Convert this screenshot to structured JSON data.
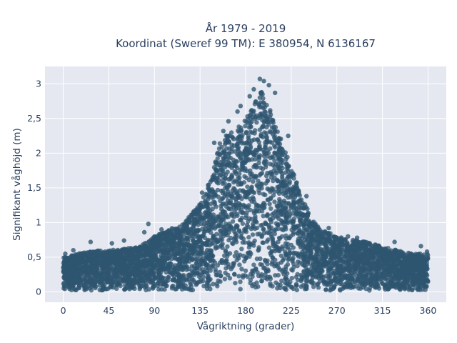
{
  "chart_data": {
    "type": "scatter",
    "title": [
      "År 1979 - 2019",
      "Koordinat (Sweref 99 TM): E 380954, N 6136167"
    ],
    "xlabel": "Vågriktning (grader)",
    "ylabel": "Signifikant våghöjd (m)",
    "xlim": [
      -18,
      378
    ],
    "ylim": [
      -0.15,
      3.25
    ],
    "xticks": [
      0,
      45,
      90,
      135,
      180,
      225,
      270,
      315,
      360
    ],
    "xtick_labels": [
      "0",
      "45",
      "90",
      "135",
      "180",
      "225",
      "270",
      "315",
      "360"
    ],
    "yticks": [
      0,
      0.5,
      1,
      1.5,
      2,
      2.5,
      3
    ],
    "ytick_labels": [
      "0",
      "0,5",
      "1",
      "1,5",
      "2",
      "2,5",
      "3"
    ],
    "grid": true,
    "marker_color": "#2f5670",
    "plot_bgcolor": "#e5e8f0",
    "upper_envelope": {
      "x": [
        0,
        15,
        30,
        45,
        60,
        75,
        90,
        105,
        120,
        135,
        145,
        155,
        165,
        175,
        185,
        190,
        195,
        200,
        205,
        210,
        215,
        225,
        235,
        245,
        255,
        270,
        285,
        300,
        315,
        330,
        345,
        360
      ],
      "y": [
        0.5,
        0.55,
        0.6,
        0.6,
        0.62,
        0.65,
        0.8,
        0.9,
        1.0,
        1.3,
        1.6,
        2.2,
        2.3,
        2.4,
        2.6,
        2.75,
        2.9,
        2.8,
        2.6,
        2.4,
        2.2,
        1.8,
        1.4,
        1.05,
        0.9,
        0.8,
        0.75,
        0.72,
        0.65,
        0.6,
        0.55,
        0.55
      ]
    },
    "outliers": [
      {
        "x": 194,
        "y": 3.07
      },
      {
        "x": 198,
        "y": 3.04
      },
      {
        "x": 203,
        "y": 2.98
      },
      {
        "x": 188,
        "y": 2.92
      },
      {
        "x": 209,
        "y": 2.87
      },
      {
        "x": 184,
        "y": 2.82
      },
      {
        "x": 175,
        "y": 2.68
      },
      {
        "x": 172,
        "y": 2.6
      },
      {
        "x": 163,
        "y": 2.46
      },
      {
        "x": 158,
        "y": 2.32
      },
      {
        "x": 222,
        "y": 2.25
      },
      {
        "x": 149,
        "y": 2.15
      },
      {
        "x": 137,
        "y": 1.43
      },
      {
        "x": 240,
        "y": 1.38
      },
      {
        "x": 84,
        "y": 0.98
      },
      {
        "x": 120,
        "y": 0.95
      },
      {
        "x": 80,
        "y": 0.86
      },
      {
        "x": 97,
        "y": 0.9
      },
      {
        "x": 27,
        "y": 0.72
      },
      {
        "x": 48,
        "y": 0.7
      },
      {
        "x": 60,
        "y": 0.74
      },
      {
        "x": 290,
        "y": 0.78
      },
      {
        "x": 262,
        "y": 0.92
      },
      {
        "x": 281,
        "y": 0.8
      },
      {
        "x": 327,
        "y": 0.72
      },
      {
        "x": 353,
        "y": 0.66
      },
      {
        "x": 359,
        "y": 0.58
      },
      {
        "x": 2,
        "y": 0.55
      },
      {
        "x": 10,
        "y": 0.6
      }
    ]
  }
}
